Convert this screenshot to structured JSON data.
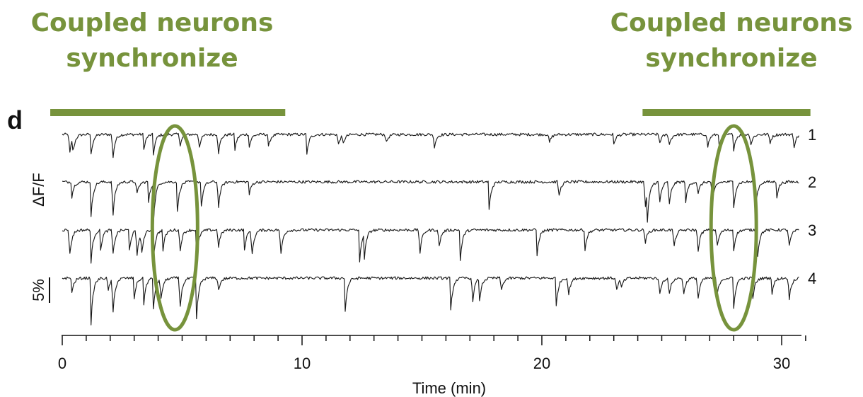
{
  "annotations": {
    "left_line1": "Coupled neurons",
    "left_line2": "synchronize",
    "right_line1": "Coupled neurons",
    "right_line2": "synchronize",
    "color": "#77933c",
    "highlight_bars_min": [
      [
        -0.5,
        9.3
      ],
      [
        24.2,
        31.2
      ]
    ],
    "ellipse_centers_min": [
      4.7,
      28.0
    ]
  },
  "chart_data": {
    "type": "line",
    "panel_label": "d",
    "xlabel": "Time (min)",
    "ylabel": "ΔF/F",
    "scale_bar_label": "5%",
    "xlim": [
      0,
      31
    ],
    "x_ticks": [
      0,
      10,
      20,
      30
    ],
    "x_minor_tick_step": 1,
    "series": [
      {
        "name": "1",
        "events": [
          [
            0.3,
            4.5
          ],
          [
            0.45,
            3
          ],
          [
            1.2,
            4
          ],
          [
            2.1,
            5.5
          ],
          [
            3.4,
            3
          ],
          [
            3.8,
            4
          ],
          [
            4.9,
            2.5
          ],
          [
            5.7,
            3
          ],
          [
            6.5,
            4.5
          ],
          [
            7.2,
            3
          ],
          [
            7.8,
            2.5
          ],
          [
            8.6,
            2.5
          ],
          [
            10.2,
            4
          ],
          [
            11.5,
            2.5
          ],
          [
            11.7,
            2
          ],
          [
            13.5,
            2
          ],
          [
            15.5,
            3
          ],
          [
            20.3,
            2
          ],
          [
            23.0,
            2
          ],
          [
            24.9,
            2
          ],
          [
            25.3,
            2.5
          ],
          [
            26.9,
            3
          ],
          [
            27.4,
            2.5
          ],
          [
            28.0,
            3
          ],
          [
            28.7,
            2.5
          ],
          [
            29.5,
            2
          ],
          [
            30.5,
            3
          ]
        ]
      },
      {
        "name": "2",
        "events": [
          [
            0.4,
            3
          ],
          [
            1.2,
            7
          ],
          [
            2.1,
            8
          ],
          [
            3.1,
            3
          ],
          [
            3.6,
            4
          ],
          [
            3.8,
            8
          ],
          [
            4.8,
            6
          ],
          [
            5.8,
            5
          ],
          [
            6.5,
            6
          ],
          [
            7.8,
            2.5
          ],
          [
            17.8,
            5.5
          ],
          [
            20.7,
            3.5
          ],
          [
            24.3,
            6
          ],
          [
            24.4,
            6
          ],
          [
            24.9,
            5
          ],
          [
            25.3,
            5.5
          ],
          [
            26.0,
            4
          ],
          [
            26.5,
            3
          ],
          [
            27.1,
            5
          ],
          [
            28.0,
            5
          ],
          [
            28.9,
            6
          ],
          [
            29.8,
            3
          ]
        ]
      },
      {
        "name": "3",
        "events": [
          [
            0.3,
            6
          ],
          [
            1.2,
            6.5
          ],
          [
            1.6,
            4
          ],
          [
            2.1,
            6
          ],
          [
            2.8,
            4
          ],
          [
            3.1,
            6
          ],
          [
            3.3,
            5
          ],
          [
            3.8,
            6
          ],
          [
            4.2,
            4
          ],
          [
            4.9,
            5
          ],
          [
            5.6,
            6
          ],
          [
            6.5,
            4
          ],
          [
            7.6,
            4
          ],
          [
            7.9,
            6
          ],
          [
            9.1,
            6
          ],
          [
            12.4,
            6.5
          ],
          [
            12.6,
            5
          ],
          [
            14.9,
            5.5
          ],
          [
            15.7,
            4
          ],
          [
            16.6,
            6
          ],
          [
            19.8,
            5
          ],
          [
            21.8,
            4
          ],
          [
            24.3,
            3
          ],
          [
            25.5,
            4
          ],
          [
            26.5,
            5
          ],
          [
            27.3,
            4
          ],
          [
            28.0,
            4
          ],
          [
            29.0,
            5
          ],
          [
            30.3,
            4
          ]
        ]
      },
      {
        "name": "4",
        "events": [
          [
            0.4,
            3
          ],
          [
            1.2,
            9
          ],
          [
            1.9,
            3
          ],
          [
            2.1,
            8
          ],
          [
            3.0,
            4
          ],
          [
            3.4,
            5
          ],
          [
            3.8,
            6
          ],
          [
            4.1,
            5
          ],
          [
            4.9,
            7
          ],
          [
            5.6,
            8
          ],
          [
            6.5,
            3
          ],
          [
            11.8,
            6.5
          ],
          [
            16.2,
            6.5
          ],
          [
            17.1,
            5.5
          ],
          [
            17.4,
            4.5
          ],
          [
            18.3,
            3
          ],
          [
            20.6,
            5.5
          ],
          [
            21.1,
            4
          ],
          [
            23.1,
            3
          ],
          [
            23.3,
            2
          ],
          [
            24.9,
            4
          ],
          [
            25.3,
            4
          ],
          [
            25.9,
            4
          ],
          [
            26.5,
            5
          ],
          [
            27.3,
            4
          ],
          [
            28.0,
            6
          ],
          [
            28.8,
            4
          ],
          [
            29.6,
            3
          ],
          [
            30.3,
            5
          ]
        ]
      }
    ]
  }
}
